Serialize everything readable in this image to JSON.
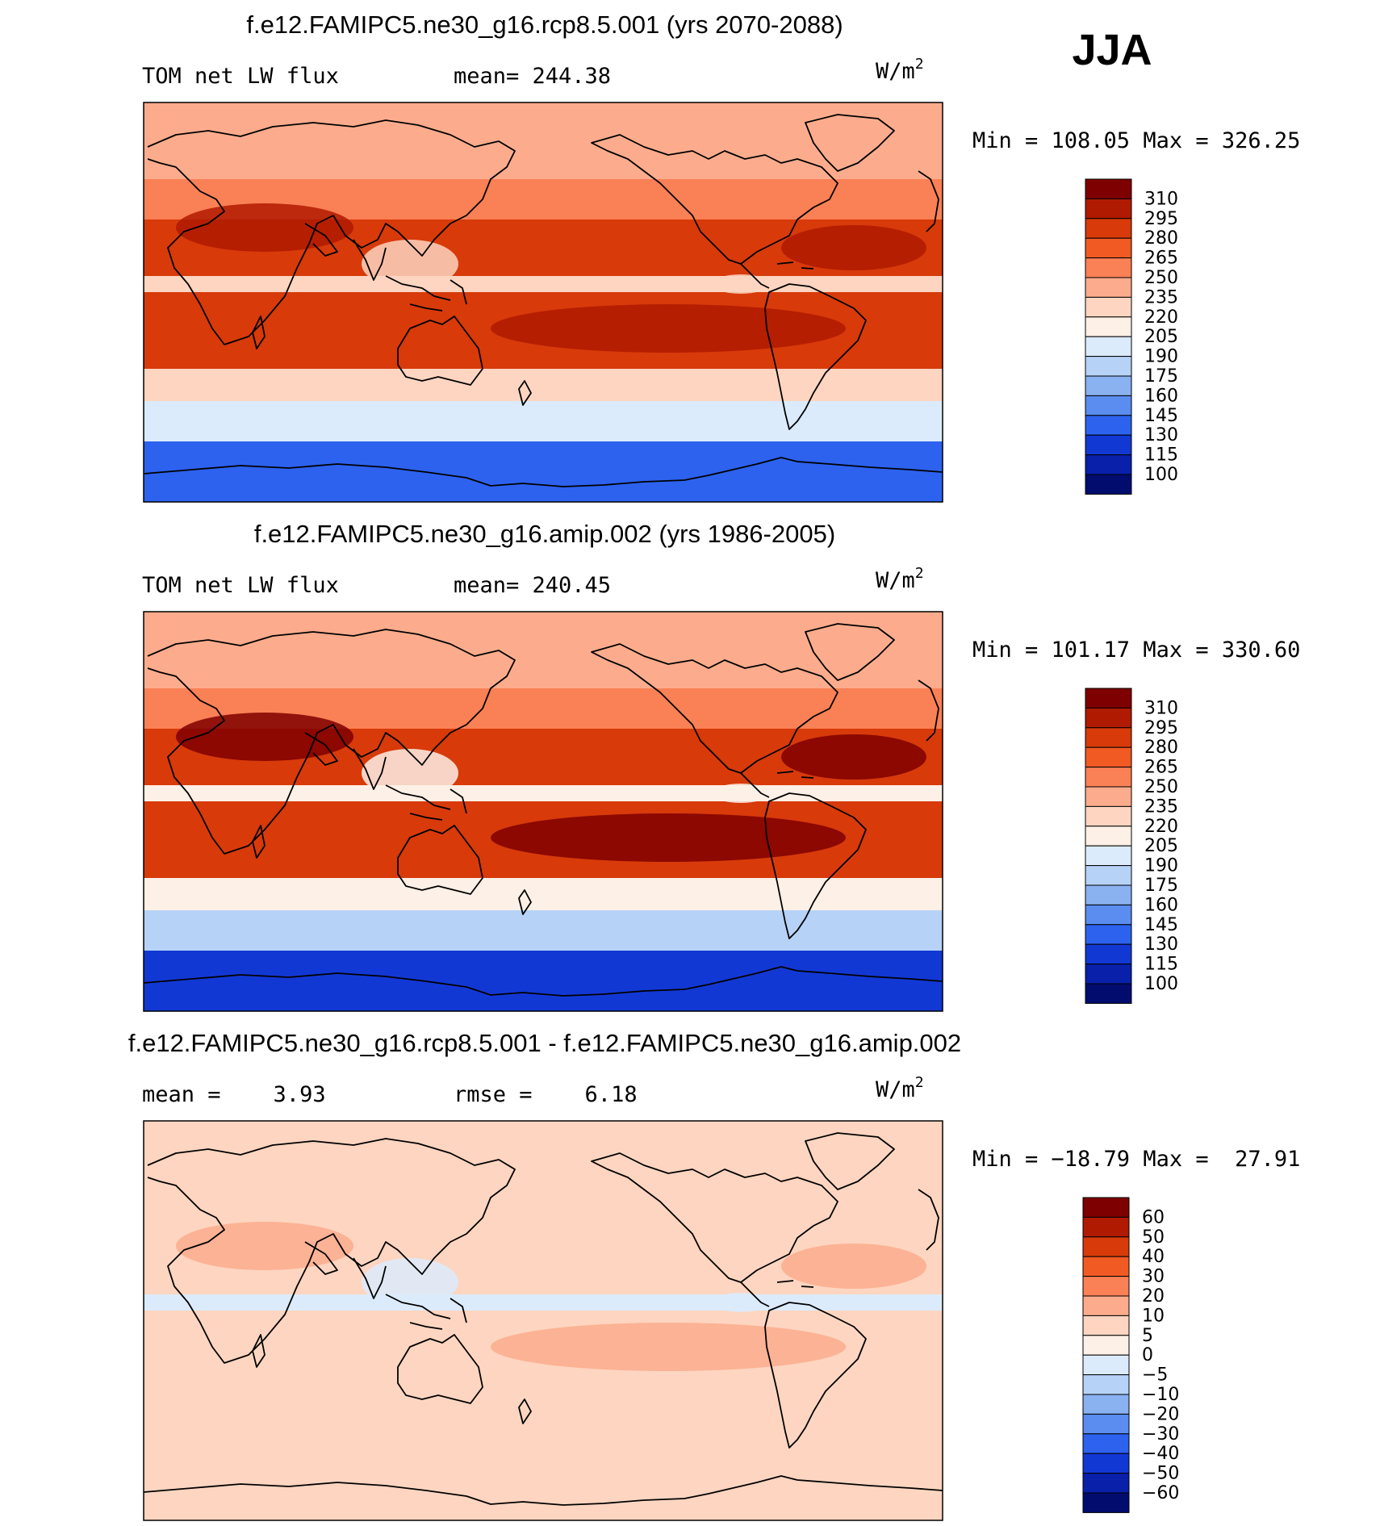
{
  "header": {
    "season": "JJA"
  },
  "chart_data": [
    {
      "type": "heatmap",
      "title": "f.e12.FAMIPC5.ne30_g16.rcp8.5.001 (yrs 2070-2088)",
      "left_label": "TOM net LW flux",
      "center_label": "mean= 244.38",
      "units": "W/m",
      "units_sup": "2",
      "stats": "Min = 108.05 Max = 326.25",
      "mean": 244.38,
      "min": 108.05,
      "max": 326.25,
      "colorbar_levels": [
        "310",
        "295",
        "280",
        "265",
        "250",
        "235",
        "220",
        "205",
        "190",
        "175",
        "160",
        "145",
        "130",
        "115",
        "100"
      ],
      "colors": [
        "#7f0000",
        "#b01a00",
        "#d83a0a",
        "#f25a24",
        "#fa8055",
        "#fcac8c",
        "#fdd5c0",
        "#fdf0e6",
        "#dcebfb",
        "#b6d2f7",
        "#8ab1f0",
        "#5a8def",
        "#2c62ee",
        "#1238d4",
        "#0820aa",
        "#020c6e"
      ],
      "fields": {
        "polar_north": "235",
        "northern_midlat": "250",
        "subtropical_deserts": "295",
        "tropical_convection": "220",
        "subtropical_oceans": "280",
        "southern_midlat": "220",
        "southern_ocean": "190",
        "antarctica": "130"
      }
    },
    {
      "type": "heatmap",
      "title": "f.e12.FAMIPC5.ne30_g16.amip.002 (yrs 1986-2005)",
      "left_label": "TOM net LW flux",
      "center_label": "mean= 240.45",
      "units": "W/m",
      "units_sup": "2",
      "stats": "Min = 101.17 Max = 330.60",
      "mean": 240.45,
      "min": 101.17,
      "max": 330.6,
      "colorbar_levels": [
        "310",
        "295",
        "280",
        "265",
        "250",
        "235",
        "220",
        "205",
        "190",
        "175",
        "160",
        "145",
        "130",
        "115",
        "100"
      ],
      "colors": [
        "#7f0000",
        "#b01a00",
        "#d83a0a",
        "#f25a24",
        "#fa8055",
        "#fcac8c",
        "#fdd5c0",
        "#fdf0e6",
        "#dcebfb",
        "#b6d2f7",
        "#8ab1f0",
        "#5a8def",
        "#2c62ee",
        "#1238d4",
        "#0820aa",
        "#020c6e"
      ],
      "fields": {
        "polar_north": "235",
        "northern_midlat": "250",
        "subtropical_deserts": "310",
        "tropical_convection": "205",
        "subtropical_oceans": "280",
        "southern_midlat": "205",
        "southern_ocean": "175",
        "antarctica": "115"
      }
    },
    {
      "type": "heatmap",
      "title": "f.e12.FAMIPC5.ne30_g16.rcp8.5.001 - f.e12.FAMIPC5.ne30_g16.amip.002",
      "left_label": "mean =    3.93",
      "center_label": "rmse =    6.18",
      "units": "W/m",
      "units_sup": "2",
      "stats": "Min = −18.79 Max =  27.91",
      "mean": 3.93,
      "rmse": 6.18,
      "min": -18.79,
      "max": 27.91,
      "colorbar_levels": [
        "60",
        "50",
        "40",
        "30",
        "20",
        "10",
        "5",
        "0",
        "−5",
        "−10",
        "−20",
        "−30",
        "−40",
        "−50",
        "−60"
      ],
      "colors": [
        "#7f0000",
        "#b01a00",
        "#d83a0a",
        "#f25a24",
        "#fa8055",
        "#fcac8c",
        "#fdd5c0",
        "#fdf0e6",
        "#dcebfb",
        "#b6d2f7",
        "#8ab1f0",
        "#5a8def",
        "#2c62ee",
        "#1238d4",
        "#0820aa",
        "#020c6e"
      ],
      "fields": {
        "polar_north": "5",
        "northern_midlat": "5",
        "subtropical_deserts": "10",
        "tropical_convection": "−5",
        "subtropical_oceans": "5",
        "southern_midlat": "5",
        "southern_ocean": "5",
        "antarctica": "5"
      }
    }
  ]
}
